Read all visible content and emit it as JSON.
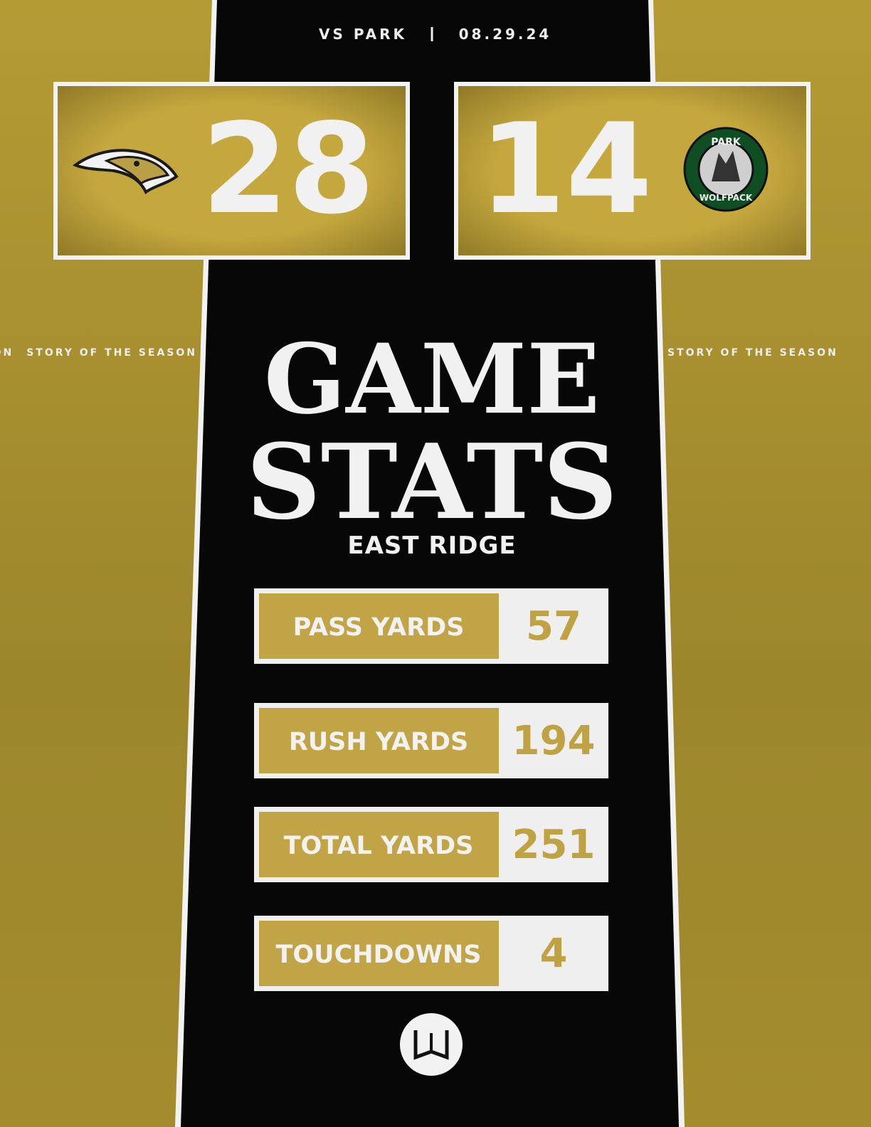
{
  "header": {
    "opponent": "VS PARK",
    "date": "08.29.24"
  },
  "scores": {
    "home": 28,
    "away": 14
  },
  "away_logo": {
    "top": "PARK",
    "bottom": "WOLFPACK"
  },
  "ticker": "STORY OF THE SEASON",
  "title": {
    "line1": "GAME",
    "line2": "STATS",
    "team": "EAST RIDGE"
  },
  "stats": [
    {
      "label": "PASS YARDS",
      "value": 57
    },
    {
      "label": "RUSH YARDS",
      "value": 194
    },
    {
      "label": "TOTAL YARDS",
      "value": 251
    },
    {
      "label": "TOUCHDOWNS",
      "value": 4
    }
  ]
}
